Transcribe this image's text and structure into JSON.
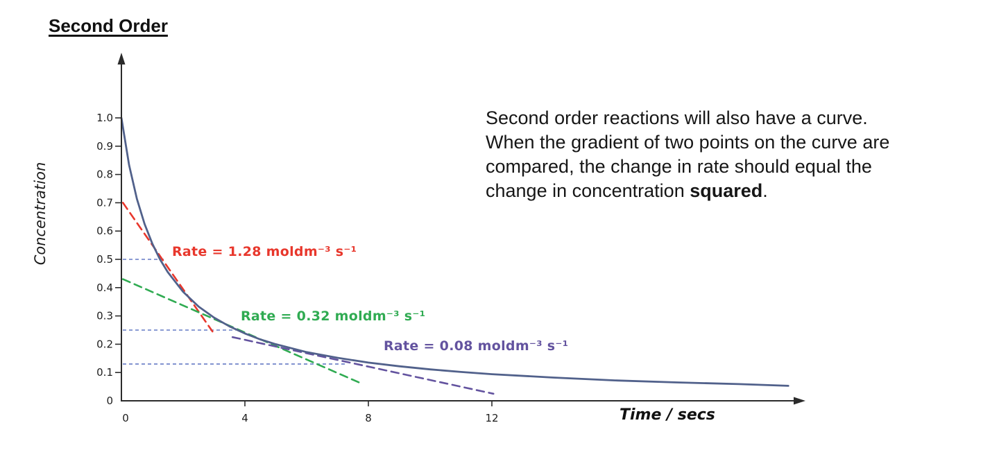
{
  "title": "Second Order",
  "paragraph": {
    "lines": [
      "Second order reactions will also have a curve.",
      "When the gradient of two points on the curve are",
      "compared, the change in rate should equal the"
    ],
    "last_line_prefix": "change in concentration ",
    "last_line_bold": "squared",
    "last_line_suffix": "."
  },
  "chart_data": {
    "type": "line",
    "title": "Second Order",
    "xlabel": "Time / secs",
    "ylabel": "Concentration",
    "xlim": [
      0,
      22
    ],
    "ylim": [
      0,
      1.05
    ],
    "grid": false,
    "legend": "none",
    "axis_color": "#2b2b2b",
    "curve_color": "#51618b",
    "guide_color": "#7a8ccd",
    "y_ticks": [
      {
        "label": "1.0",
        "value": 1.0
      },
      {
        "label": "0.9",
        "value": 0.9
      },
      {
        "label": "0.8",
        "value": 0.8
      },
      {
        "label": "0.7",
        "value": 0.7
      },
      {
        "label": "0.6",
        "value": 0.6
      },
      {
        "label": "0.5",
        "value": 0.5
      },
      {
        "label": "0.4",
        "value": 0.4
      },
      {
        "label": "0.3",
        "value": 0.3
      },
      {
        "label": "0.2",
        "value": 0.2
      },
      {
        "label": "0.1",
        "value": 0.1
      },
      {
        "label": "0",
        "value": 0
      }
    ],
    "x_ticks": [
      {
        "label": "0",
        "value": 0
      },
      {
        "label": "4",
        "value": 4
      },
      {
        "label": "8",
        "value": 8
      },
      {
        "label": "12",
        "value": 12
      }
    ],
    "series": [
      {
        "name": "concentration-curve",
        "points": [
          [
            0,
            1.0
          ],
          [
            0.25,
            0.833
          ],
          [
            0.5,
            0.714
          ],
          [
            0.75,
            0.625
          ],
          [
            1.0,
            0.556
          ],
          [
            1.25,
            0.5
          ],
          [
            1.5,
            0.455
          ],
          [
            2.0,
            0.385
          ],
          [
            2.5,
            0.333
          ],
          [
            3.0,
            0.294
          ],
          [
            3.5,
            0.263
          ],
          [
            4.0,
            0.238
          ],
          [
            4.5,
            0.217
          ],
          [
            5.0,
            0.2
          ],
          [
            6.0,
            0.172
          ],
          [
            7.0,
            0.152
          ],
          [
            8.0,
            0.135
          ],
          [
            9.0,
            0.122
          ],
          [
            10,
            0.111
          ],
          [
            11,
            0.102
          ],
          [
            12,
            0.094
          ],
          [
            14,
            0.082
          ],
          [
            16,
            0.072
          ],
          [
            18,
            0.065
          ],
          [
            20,
            0.059
          ],
          [
            21.6,
            0.053
          ]
        ]
      }
    ],
    "tangents": [
      {
        "name": "tangent-at-0.5",
        "color": "#e8372c",
        "from": [
          0.05,
          0.7
        ],
        "to": [
          2.95,
          0.245
        ]
      },
      {
        "name": "tangent-at-0.25",
        "color": "#30ab52",
        "from": [
          0.05,
          0.43
        ],
        "to": [
          7.8,
          0.06
        ]
      },
      {
        "name": "tangent-at-0.13",
        "color": "#63539f",
        "from": [
          3.6,
          0.225
        ],
        "to": [
          12.05,
          0.025
        ]
      }
    ],
    "guides": [
      {
        "c": 0.5,
        "t_end": 1.45
      },
      {
        "c": 0.25,
        "t_end": 3.7
      },
      {
        "c": 0.13,
        "t_end": 7.3
      }
    ],
    "rate_labels": [
      {
        "text": "Rate = 1.28 moldm⁻³ s⁻¹",
        "color": "#e8372c"
      },
      {
        "text": "Rate = 0.32 moldm⁻³ s⁻¹",
        "color": "#30ab52"
      },
      {
        "text": "Rate = 0.08 moldm⁻³ s⁻¹",
        "color": "#63539f"
      }
    ]
  }
}
